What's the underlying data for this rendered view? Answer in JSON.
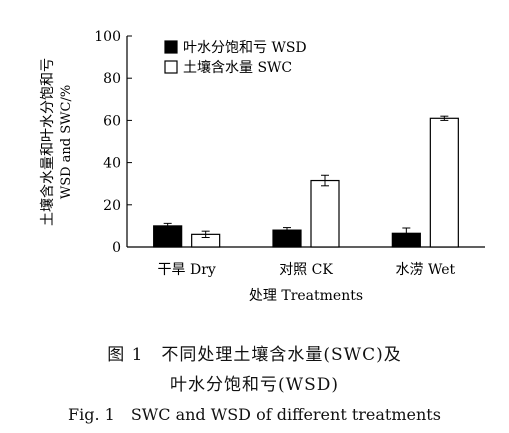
{
  "chart_data": {
    "type": "bar",
    "ylabel_line1": "土壤含水量和叶水分饱和亏",
    "ylabel_line2": "WSD and SWC/%",
    "xlabel": "处理 Treatments",
    "categories": [
      "干旱 Dry",
      "对照 CK",
      "水涝 Wet"
    ],
    "ylim": [
      0,
      100
    ],
    "yticks": [
      "0",
      "20",
      "40",
      "60",
      "80",
      "100"
    ],
    "series": [
      {
        "name": "叶水分饱和亏 WSD",
        "color": "#000000",
        "fill": "solid",
        "values": [
          10,
          8,
          6.5
        ],
        "errors": [
          1.2,
          1.2,
          2.5
        ]
      },
      {
        "name": "土壤含水量 SWC",
        "color": "#ffffff",
        "fill": "hollow",
        "values": [
          6,
          31.5,
          61
        ],
        "errors": [
          1.5,
          2.5,
          1
        ]
      }
    ],
    "legend_position": "top-left",
    "grid": false
  },
  "caption": {
    "cn_line1": "图 1　不同处理土壤含水量(SWC)及",
    "cn_line2": "叶水分饱和亏(WSD)",
    "en_line": "Fig. 1　SWC and WSD of different treatments"
  }
}
